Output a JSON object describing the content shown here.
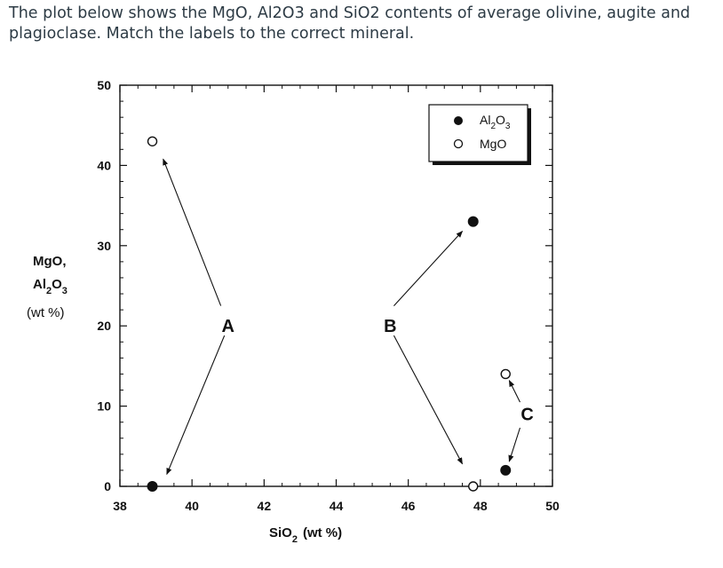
{
  "question": {
    "text": "The plot below shows the MgO, Al2O3 and SiO2 contents of average olivine, augite and plagioclase. Match the labels to the correct mineral."
  },
  "chart_data": {
    "type": "scatter",
    "xlim": [
      38,
      50
    ],
    "ylim": [
      0,
      50
    ],
    "x_ticks": [
      38,
      40,
      42,
      44,
      46,
      48,
      50
    ],
    "y_ticks": [
      0,
      10,
      20,
      30,
      40,
      50
    ],
    "x_tick_labels": [
      "38",
      "40",
      "42",
      "44",
      "46",
      "48",
      "50"
    ],
    "y_tick_labels": [
      "0",
      "10",
      "20",
      "30",
      "40",
      "50"
    ],
    "xlabel": {
      "main": "SiO",
      "sub": "2",
      "unit": "(wt %)"
    },
    "ylabel": {
      "line1": "MgO,",
      "line2_main": "Al",
      "line2_sub1": "2",
      "line2_mid": "O",
      "line2_sub2": "3",
      "line3": "(wt %)"
    },
    "legend_position": "top-right",
    "series": [
      {
        "name": "Al2O3",
        "legend_main": "Al",
        "legend_sub1": "2",
        "legend_mid": "O",
        "legend_sub2": "3",
        "marker": "filled-circle",
        "x": [
          38.9,
          47.8,
          48.7
        ],
        "y": [
          0,
          33,
          2
        ]
      },
      {
        "name": "MgO",
        "legend_main": "MgO",
        "marker": "open-circle",
        "x": [
          38.9,
          47.8,
          48.7
        ],
        "y": [
          43,
          0,
          14
        ]
      }
    ],
    "annotations": [
      {
        "text": "A",
        "x": 41,
        "y": 20,
        "arrows": [
          {
            "from": [
              40.8,
              22.5
            ],
            "to": [
              39.2,
              40.8
            ]
          },
          {
            "from": [
              40.9,
              18.8
            ],
            "to": [
              39.3,
              1.5
            ]
          }
        ]
      },
      {
        "text": "B",
        "x": 45.5,
        "y": 20,
        "arrows": [
          {
            "from": [
              45.6,
              22.5
            ],
            "to": [
              47.5,
              31.8
            ]
          },
          {
            "from": [
              45.6,
              18.8
            ],
            "to": [
              47.5,
              2.8
            ]
          }
        ]
      },
      {
        "text": "C",
        "x": 49.3,
        "y": 9,
        "arrows": [
          {
            "from": [
              49.1,
              10.5
            ],
            "to": [
              48.8,
              13.2
            ]
          },
          {
            "from": [
              49.1,
              7.3
            ],
            "to": [
              48.8,
              3.1
            ]
          }
        ]
      }
    ]
  }
}
